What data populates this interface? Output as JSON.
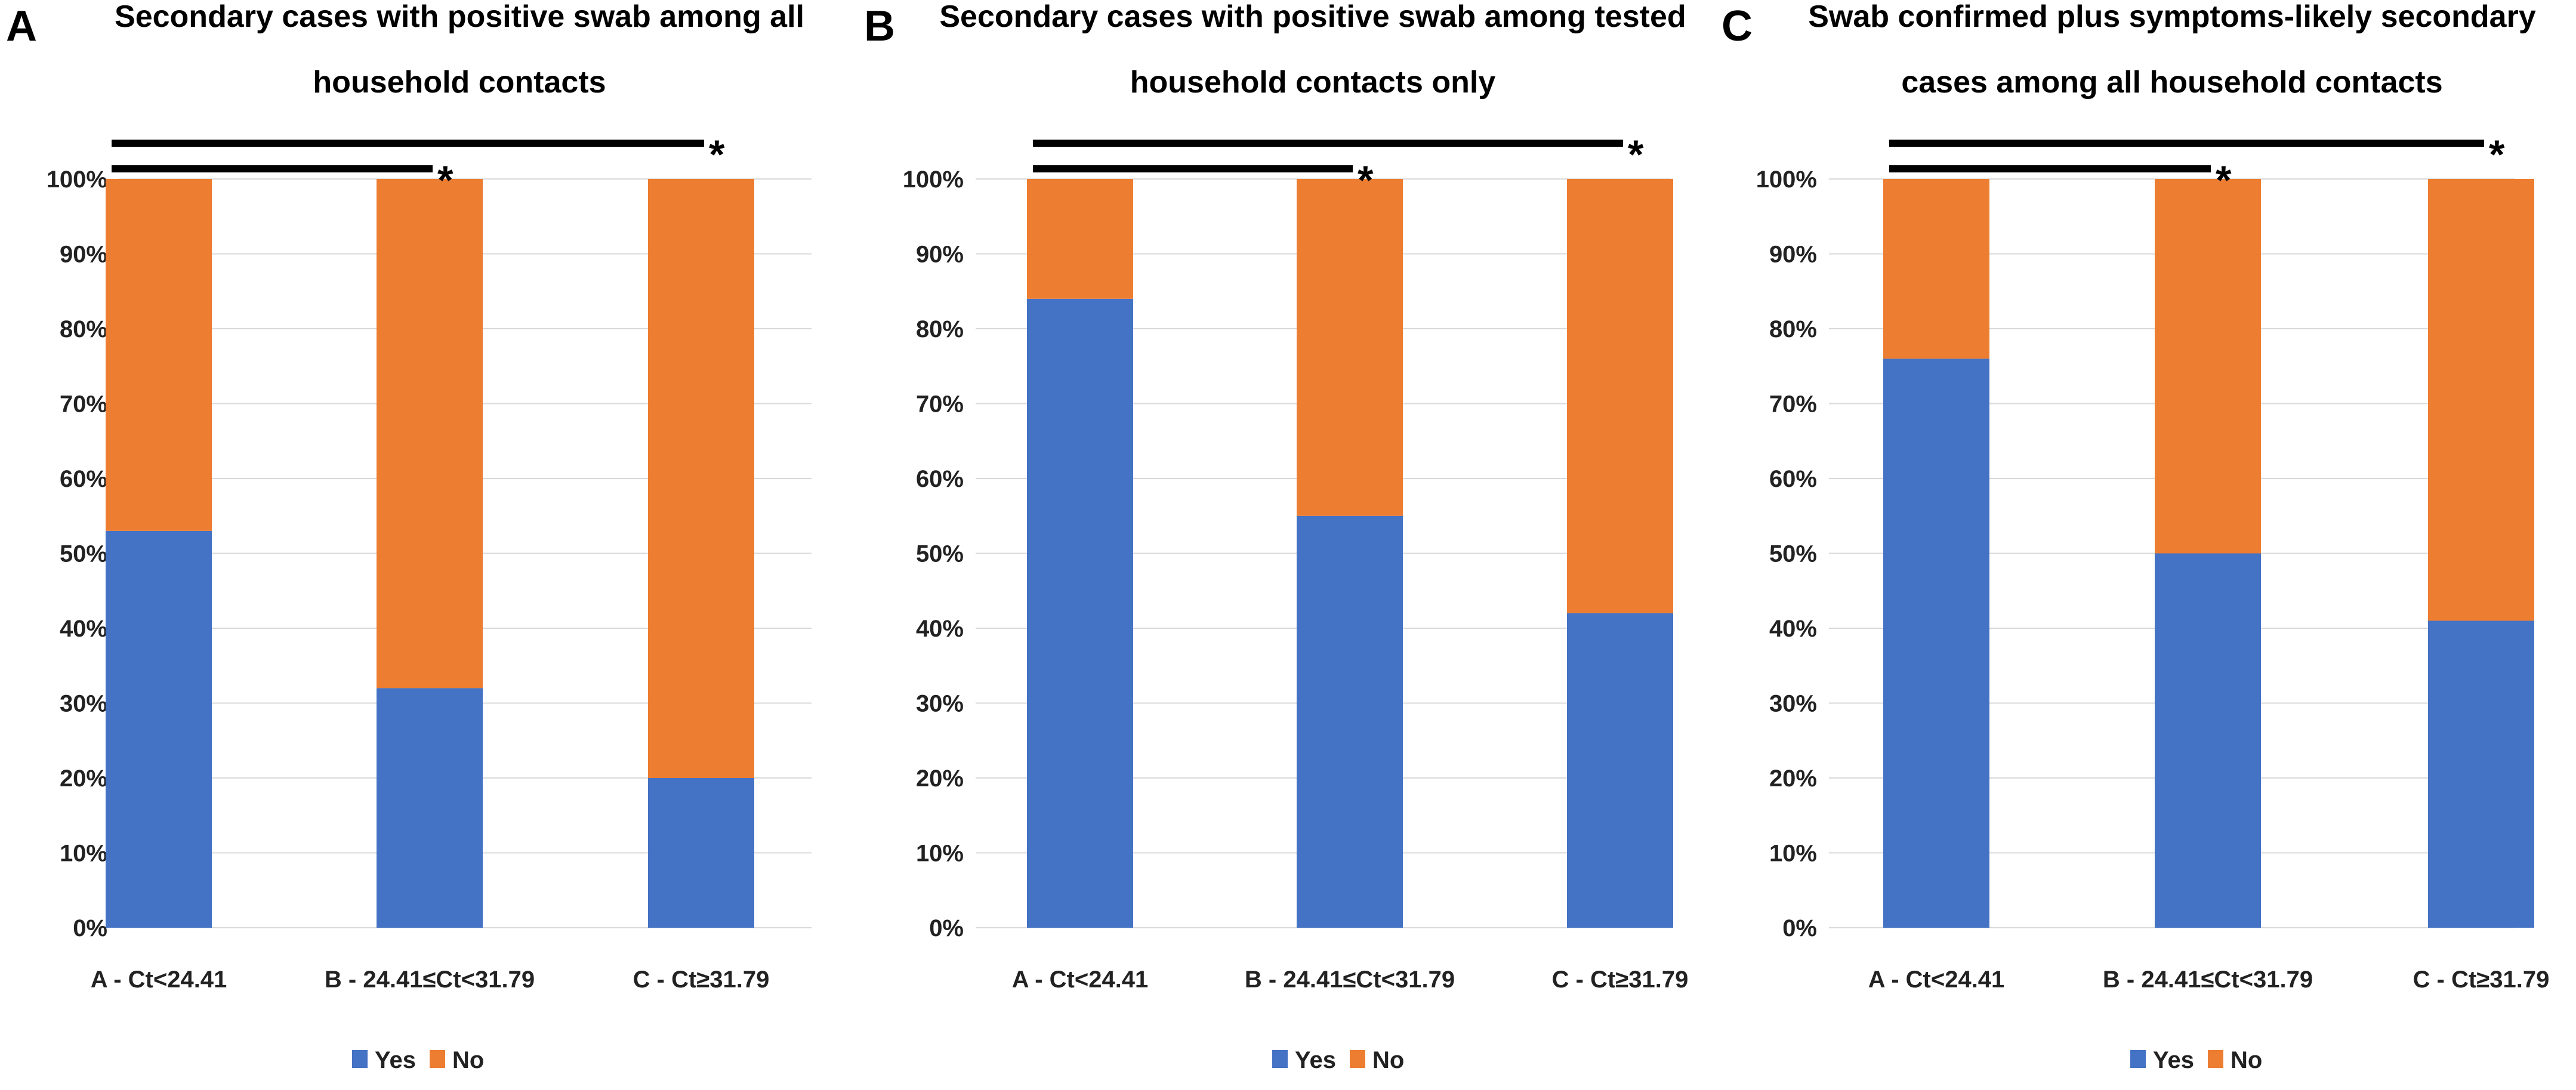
{
  "chart_data": [
    {
      "panel": "A",
      "type": "bar",
      "stacked": true,
      "percent": true,
      "title_lines": [
        "Secondary cases with positive swab among all",
        "household contacts"
      ],
      "categories": [
        "A - Ct<24.41",
        "B - 24.41≤Ct<31.79",
        "C - Ct≥31.79"
      ],
      "series": [
        {
          "name": "Yes",
          "color": "#4472c4",
          "values": [
            53,
            32,
            20
          ]
        },
        {
          "name": "No",
          "color": "#ed7d31",
          "values": [
            47,
            68,
            80
          ]
        }
      ],
      "ylim": [
        0,
        100
      ],
      "yticks": [
        "0%",
        "10%",
        "20%",
        "30%",
        "40%",
        "50%",
        "60%",
        "70%",
        "80%",
        "90%",
        "100%"
      ],
      "significance": [
        {
          "from": 0,
          "to": 1,
          "symbol": "*"
        },
        {
          "from": 0,
          "to": 2,
          "symbol": "*"
        }
      ]
    },
    {
      "panel": "B",
      "type": "bar",
      "stacked": true,
      "percent": true,
      "title_lines": [
        "Secondary cases with positive swab among tested",
        "household contacts only"
      ],
      "categories": [
        "A - Ct<24.41",
        "B - 24.41≤Ct<31.79",
        "C - Ct≥31.79"
      ],
      "series": [
        {
          "name": "Yes",
          "color": "#4472c4",
          "values": [
            84,
            55,
            42
          ]
        },
        {
          "name": "No",
          "color": "#ed7d31",
          "values": [
            16,
            45,
            58
          ]
        }
      ],
      "ylim": [
        0,
        100
      ],
      "yticks": [
        "0%",
        "10%",
        "20%",
        "30%",
        "40%",
        "50%",
        "60%",
        "70%",
        "80%",
        "90%",
        "100%"
      ],
      "significance": [
        {
          "from": 0,
          "to": 1,
          "symbol": "*"
        },
        {
          "from": 0,
          "to": 2,
          "symbol": "*"
        }
      ]
    },
    {
      "panel": "C",
      "type": "bar",
      "stacked": true,
      "percent": true,
      "title_lines": [
        "Swab confirmed plus symptoms-likely secondary",
        "cases among all household contacts"
      ],
      "categories": [
        "A - Ct<24.41",
        "B - 24.41≤Ct<31.79",
        "C - Ct≥31.79"
      ],
      "series": [
        {
          "name": "Yes",
          "color": "#4472c4",
          "values": [
            76,
            50,
            41
          ]
        },
        {
          "name": "No",
          "color": "#ed7d31",
          "values": [
            24,
            50,
            59
          ]
        }
      ],
      "ylim": [
        0,
        100
      ],
      "yticks": [
        "0%",
        "10%",
        "20%",
        "30%",
        "40%",
        "50%",
        "60%",
        "70%",
        "80%",
        "90%",
        "100%"
      ],
      "significance": [
        {
          "from": 0,
          "to": 1,
          "symbol": "*"
        },
        {
          "from": 0,
          "to": 2,
          "symbol": "*"
        }
      ]
    }
  ]
}
